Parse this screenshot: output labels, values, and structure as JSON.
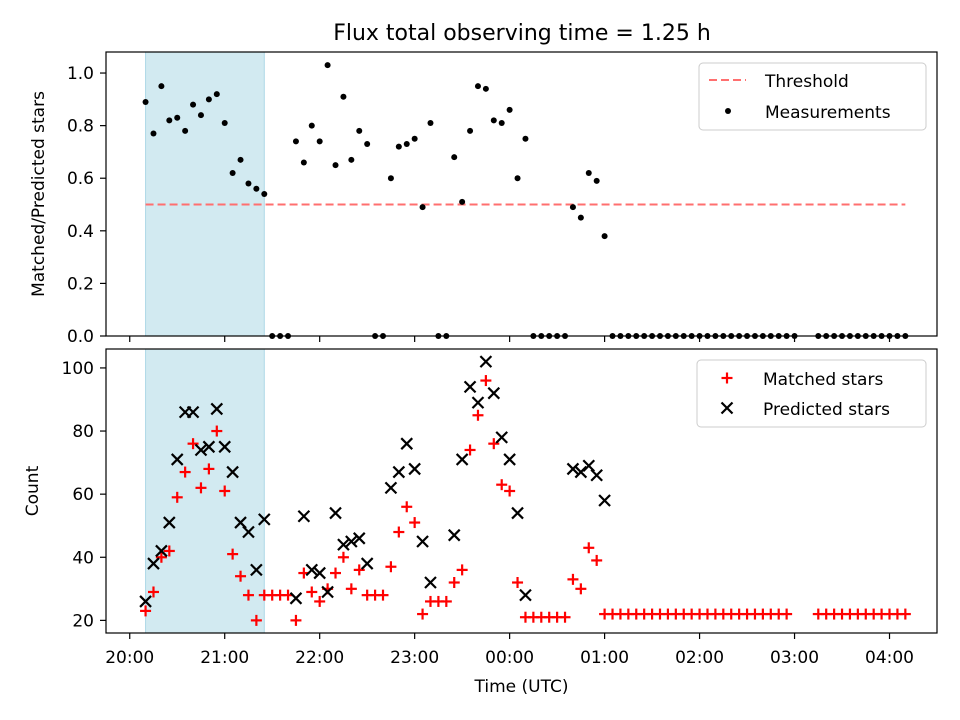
{
  "title": "Flux total observing time = 1.25 h",
  "colors": {
    "matched": "#ff0000",
    "predicted": "#000000",
    "threshold": "#ff6f6f",
    "shade": "#add8e6",
    "measurement": "#000000"
  },
  "chart_data": [
    {
      "type": "scatter",
      "panel": "top",
      "ylabel": "Matched/Predicted stars",
      "ylim": [
        0,
        1.08
      ],
      "yticks": [
        0.0,
        0.2,
        0.4,
        0.6,
        0.8,
        1.0
      ],
      "ytick_labels": [
        "0.0",
        "0.2",
        "0.4",
        "0.6",
        "0.8",
        "1.0"
      ],
      "xlim": [
        "19:45",
        "04:30"
      ],
      "shaded_span": [
        "20:10",
        "21:25"
      ],
      "legend": {
        "location": "upper right",
        "entries": [
          "Threshold",
          "Measurements"
        ]
      },
      "threshold": {
        "name": "Threshold",
        "y": 0.5,
        "x": [
          "20:10",
          "04:10"
        ],
        "style": "dashed"
      },
      "series": [
        {
          "name": "Measurements",
          "points": [
            [
              "20:10",
              0.89
            ],
            [
              "20:15",
              0.77
            ],
            [
              "20:20",
              0.95
            ],
            [
              "20:25",
              0.82
            ],
            [
              "20:30",
              0.83
            ],
            [
              "20:35",
              0.78
            ],
            [
              "20:40",
              0.88
            ],
            [
              "20:45",
              0.84
            ],
            [
              "20:50",
              0.9
            ],
            [
              "20:55",
              0.92
            ],
            [
              "21:00",
              0.81
            ],
            [
              "21:05",
              0.62
            ],
            [
              "21:10",
              0.67
            ],
            [
              "21:15",
              0.58
            ],
            [
              "21:20",
              0.56
            ],
            [
              "21:25",
              0.54
            ],
            [
              "21:30",
              0.0
            ],
            [
              "21:35",
              0.0
            ],
            [
              "21:40",
              0.0
            ],
            [
              "21:45",
              0.74
            ],
            [
              "21:50",
              0.66
            ],
            [
              "21:55",
              0.8
            ],
            [
              "22:00",
              0.74
            ],
            [
              "22:05",
              1.03
            ],
            [
              "22:10",
              0.65
            ],
            [
              "22:15",
              0.91
            ],
            [
              "22:20",
              0.67
            ],
            [
              "22:25",
              0.78
            ],
            [
              "22:30",
              0.73
            ],
            [
              "22:35",
              0.0
            ],
            [
              "22:40",
              0.0
            ],
            [
              "22:45",
              0.6
            ],
            [
              "22:50",
              0.72
            ],
            [
              "22:55",
              0.73
            ],
            [
              "23:00",
              0.75
            ],
            [
              "23:05",
              0.49
            ],
            [
              "23:10",
              0.81
            ],
            [
              "23:15",
              0.0
            ],
            [
              "23:20",
              0.0
            ],
            [
              "23:25",
              0.68
            ],
            [
              "23:30",
              0.51
            ],
            [
              "23:35",
              0.78
            ],
            [
              "23:40",
              0.95
            ],
            [
              "23:45",
              0.94
            ],
            [
              "23:50",
              0.82
            ],
            [
              "23:55",
              0.81
            ],
            [
              "00:00",
              0.86
            ],
            [
              "00:05",
              0.6
            ],
            [
              "00:10",
              0.75
            ],
            [
              "00:15",
              0.0
            ],
            [
              "00:20",
              0.0
            ],
            [
              "00:25",
              0.0
            ],
            [
              "00:30",
              0.0
            ],
            [
              "00:35",
              0.0
            ],
            [
              "00:40",
              0.49
            ],
            [
              "00:45",
              0.45
            ],
            [
              "00:50",
              0.62
            ],
            [
              "00:55",
              0.59
            ],
            [
              "01:00",
              0.38
            ],
            [
              "01:05",
              0.0
            ],
            [
              "01:10",
              0.0
            ],
            [
              "01:15",
              0.0
            ],
            [
              "01:20",
              0.0
            ],
            [
              "01:25",
              0.0
            ],
            [
              "01:30",
              0.0
            ],
            [
              "01:35",
              0.0
            ],
            [
              "01:40",
              0.0
            ],
            [
              "01:45",
              0.0
            ],
            [
              "01:50",
              0.0
            ],
            [
              "01:55",
              0.0
            ],
            [
              "02:00",
              0.0
            ],
            [
              "02:05",
              0.0
            ],
            [
              "02:10",
              0.0
            ],
            [
              "02:15",
              0.0
            ],
            [
              "02:20",
              0.0
            ],
            [
              "02:25",
              0.0
            ],
            [
              "02:30",
              0.0
            ],
            [
              "02:35",
              0.0
            ],
            [
              "02:40",
              0.0
            ],
            [
              "02:45",
              0.0
            ],
            [
              "02:50",
              0.0
            ],
            [
              "02:55",
              0.0
            ],
            [
              "03:00",
              0.0
            ],
            [
              "03:15",
              0.0
            ],
            [
              "03:20",
              0.0
            ],
            [
              "03:25",
              0.0
            ],
            [
              "03:30",
              0.0
            ],
            [
              "03:35",
              0.0
            ],
            [
              "03:40",
              0.0
            ],
            [
              "03:45",
              0.0
            ],
            [
              "03:50",
              0.0
            ],
            [
              "03:55",
              0.0
            ],
            [
              "04:00",
              0.0
            ],
            [
              "04:05",
              0.0
            ],
            [
              "04:10",
              0.0
            ]
          ]
        }
      ]
    },
    {
      "type": "scatter",
      "panel": "bottom",
      "xlabel": "Time (UTC)",
      "ylabel": "Count",
      "ylim": [
        16,
        106
      ],
      "yticks": [
        20,
        40,
        60,
        80,
        100
      ],
      "ytick_labels": [
        "20",
        "40",
        "60",
        "80",
        "100"
      ],
      "xlim": [
        "19:45",
        "04:30"
      ],
      "xticks": [
        "20:00",
        "21:00",
        "22:00",
        "23:00",
        "00:00",
        "01:00",
        "02:00",
        "03:00",
        "04:00"
      ],
      "xtick_labels": [
        "20:00",
        "21:00",
        "22:00",
        "23:00",
        "00:00",
        "01:00",
        "02:00",
        "03:00",
        "04:00"
      ],
      "shaded_span": [
        "20:10",
        "21:25"
      ],
      "legend": {
        "location": "upper right",
        "entries": [
          "Matched stars",
          "Predicted stars"
        ]
      },
      "series": [
        {
          "name": "Matched stars",
          "marker": "+",
          "points": [
            [
              "20:10",
              23
            ],
            [
              "20:15",
              29
            ],
            [
              "20:20",
              40
            ],
            [
              "20:25",
              42
            ],
            [
              "20:30",
              59
            ],
            [
              "20:35",
              67
            ],
            [
              "20:40",
              76
            ],
            [
              "20:45",
              62
            ],
            [
              "20:50",
              68
            ],
            [
              "20:55",
              80
            ],
            [
              "21:00",
              61
            ],
            [
              "21:05",
              41
            ],
            [
              "21:10",
              34
            ],
            [
              "21:15",
              28
            ],
            [
              "21:20",
              20
            ],
            [
              "21:25",
              28
            ],
            [
              "21:30",
              28
            ],
            [
              "21:35",
              28
            ],
            [
              "21:40",
              28
            ],
            [
              "21:45",
              20
            ],
            [
              "21:50",
              35
            ],
            [
              "21:55",
              29
            ],
            [
              "22:00",
              26
            ],
            [
              "22:05",
              30
            ],
            [
              "22:10",
              35
            ],
            [
              "22:15",
              40
            ],
            [
              "22:20",
              30
            ],
            [
              "22:25",
              36
            ],
            [
              "22:30",
              28
            ],
            [
              "22:35",
              28
            ],
            [
              "22:40",
              28
            ],
            [
              "22:45",
              37
            ],
            [
              "22:50",
              48
            ],
            [
              "22:55",
              56
            ],
            [
              "23:00",
              51
            ],
            [
              "23:05",
              22
            ],
            [
              "23:10",
              26
            ],
            [
              "23:15",
              26
            ],
            [
              "23:20",
              26
            ],
            [
              "23:25",
              32
            ],
            [
              "23:30",
              36
            ],
            [
              "23:35",
              74
            ],
            [
              "23:40",
              85
            ],
            [
              "23:45",
              96
            ],
            [
              "23:50",
              76
            ],
            [
              "23:55",
              63
            ],
            [
              "00:00",
              61
            ],
            [
              "00:05",
              32
            ],
            [
              "00:10",
              21
            ],
            [
              "00:15",
              21
            ],
            [
              "00:20",
              21
            ],
            [
              "00:25",
              21
            ],
            [
              "00:30",
              21
            ],
            [
              "00:35",
              21
            ],
            [
              "00:40",
              33
            ],
            [
              "00:45",
              30
            ],
            [
              "00:50",
              43
            ],
            [
              "00:55",
              39
            ],
            [
              "01:00",
              22
            ],
            [
              "01:05",
              22
            ],
            [
              "01:10",
              22
            ],
            [
              "01:15",
              22
            ],
            [
              "01:20",
              22
            ],
            [
              "01:25",
              22
            ],
            [
              "01:30",
              22
            ],
            [
              "01:35",
              22
            ],
            [
              "01:40",
              22
            ],
            [
              "01:45",
              22
            ],
            [
              "01:50",
              22
            ],
            [
              "01:55",
              22
            ],
            [
              "02:00",
              22
            ],
            [
              "02:05",
              22
            ],
            [
              "02:10",
              22
            ],
            [
              "02:15",
              22
            ],
            [
              "02:20",
              22
            ],
            [
              "02:25",
              22
            ],
            [
              "02:30",
              22
            ],
            [
              "02:35",
              22
            ],
            [
              "02:40",
              22
            ],
            [
              "02:45",
              22
            ],
            [
              "02:50",
              22
            ],
            [
              "02:55",
              22
            ],
            [
              "03:15",
              22
            ],
            [
              "03:20",
              22
            ],
            [
              "03:25",
              22
            ],
            [
              "03:30",
              22
            ],
            [
              "03:35",
              22
            ],
            [
              "03:40",
              22
            ],
            [
              "03:45",
              22
            ],
            [
              "03:50",
              22
            ],
            [
              "03:55",
              22
            ],
            [
              "04:00",
              22
            ],
            [
              "04:05",
              22
            ],
            [
              "04:10",
              22
            ]
          ]
        },
        {
          "name": "Predicted stars",
          "marker": "x",
          "points": [
            [
              "20:10",
              26
            ],
            [
              "20:15",
              38
            ],
            [
              "20:20",
              42
            ],
            [
              "20:25",
              51
            ],
            [
              "20:30",
              71
            ],
            [
              "20:35",
              86
            ],
            [
              "20:40",
              86
            ],
            [
              "20:45",
              74
            ],
            [
              "20:50",
              75
            ],
            [
              "20:55",
              87
            ],
            [
              "21:00",
              75
            ],
            [
              "21:05",
              67
            ],
            [
              "21:10",
              51
            ],
            [
              "21:15",
              48
            ],
            [
              "21:20",
              36
            ],
            [
              "21:25",
              52
            ],
            [
              "21:45",
              27
            ],
            [
              "21:50",
              53
            ],
            [
              "21:55",
              36
            ],
            [
              "22:00",
              35
            ],
            [
              "22:05",
              29
            ],
            [
              "22:10",
              54
            ],
            [
              "22:15",
              44
            ],
            [
              "22:20",
              45
            ],
            [
              "22:25",
              46
            ],
            [
              "22:30",
              38
            ],
            [
              "22:45",
              62
            ],
            [
              "22:50",
              67
            ],
            [
              "22:55",
              76
            ],
            [
              "23:00",
              68
            ],
            [
              "23:05",
              45
            ],
            [
              "23:10",
              32
            ],
            [
              "23:25",
              47
            ],
            [
              "23:30",
              71
            ],
            [
              "23:35",
              94
            ],
            [
              "23:40",
              89
            ],
            [
              "23:45",
              102
            ],
            [
              "23:50",
              92
            ],
            [
              "23:55",
              78
            ],
            [
              "00:00",
              71
            ],
            [
              "00:05",
              54
            ],
            [
              "00:10",
              28
            ],
            [
              "00:40",
              68
            ],
            [
              "00:45",
              67
            ],
            [
              "00:50",
              69
            ],
            [
              "00:55",
              66
            ],
            [
              "01:00",
              58
            ]
          ]
        }
      ]
    }
  ]
}
